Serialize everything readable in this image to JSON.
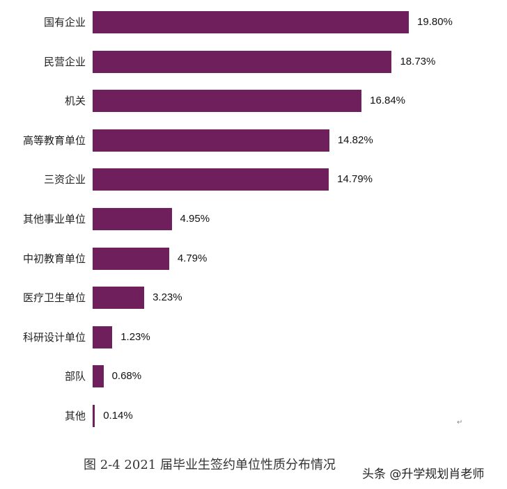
{
  "chart_data": {
    "type": "bar",
    "orientation": "horizontal",
    "title": "图 2-4 2021 届毕业生签约单位性质分布情况",
    "xlabel": "",
    "ylabel": "",
    "grid": false,
    "legend": null,
    "unit": "%",
    "bar_color": "#6e1f5c",
    "categories": [
      "国有企业",
      "民营企业",
      "机关",
      "高等教育单位",
      "三资企业",
      "其他事业单位",
      "中初教育单位",
      "医疗卫生单位",
      "科研设计单位",
      "部队",
      "其他"
    ],
    "values": [
      19.8,
      18.73,
      16.84,
      14.82,
      14.79,
      4.95,
      4.79,
      3.23,
      1.23,
      0.68,
      0.14
    ],
    "labels": [
      "19.80%",
      "18.73%",
      "16.84%",
      "14.82%",
      "14.79%",
      "4.95%",
      "4.79%",
      "3.23%",
      "1.23%",
      "0.68%",
      "0.14%"
    ]
  },
  "caption": "图 2-4 2021 届毕业生签约单位性质分布情况",
  "watermark": "头条 @升学规划肖老师",
  "paragraph_mark": "↵"
}
